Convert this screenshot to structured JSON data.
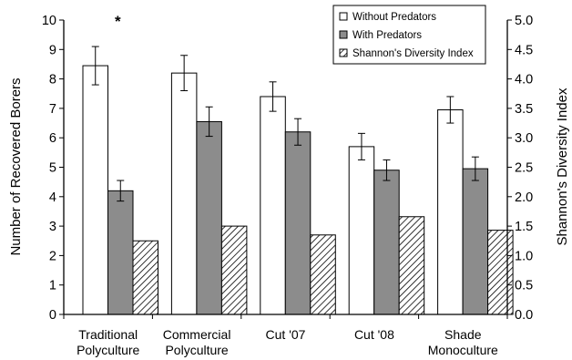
{
  "chart_data": {
    "type": "bar",
    "categories": [
      [
        "Traditional",
        "Polyculture"
      ],
      [
        "Commercial",
        "Polyculture"
      ],
      [
        "Cut '07"
      ],
      [
        "Cut '08"
      ],
      [
        "Shade",
        "Monoculture"
      ]
    ],
    "ylabel": "Number of Recovered Borers",
    "y2label": "Shannon's Diversity Index",
    "ylim": [
      0,
      10
    ],
    "y2lim": [
      0,
      5
    ],
    "yticks": [
      "0",
      "1",
      "2",
      "3",
      "4",
      "5",
      "6",
      "7",
      "8",
      "9",
      "10"
    ],
    "y2ticks": [
      "0.0",
      "0.5",
      "1.0",
      "1.5",
      "2.0",
      "2.5",
      "3.0",
      "3.5",
      "4.0",
      "4.5",
      "5.0"
    ],
    "grid": false,
    "legend_position": "top-right",
    "series": [
      {
        "name": "Without Predators",
        "axis": "left",
        "fill": "#ffffff",
        "values": [
          8.45,
          8.2,
          7.4,
          5.7,
          6.95
        ],
        "errors": [
          0.65,
          0.6,
          0.5,
          0.45,
          0.45
        ]
      },
      {
        "name": "With Predators",
        "axis": "left",
        "fill": "#8c8c8c",
        "values": [
          4.2,
          6.55,
          6.2,
          4.9,
          4.95
        ],
        "errors": [
          0.35,
          0.5,
          0.45,
          0.35,
          0.4
        ]
      },
      {
        "name": "Shannon's Diversity Index",
        "axis": "right",
        "fill": "hatched",
        "values": [
          1.25,
          1.5,
          1.35,
          1.66,
          1.43
        ]
      }
    ],
    "annotations": [
      {
        "text": "*",
        "category_index": 0
      }
    ]
  }
}
